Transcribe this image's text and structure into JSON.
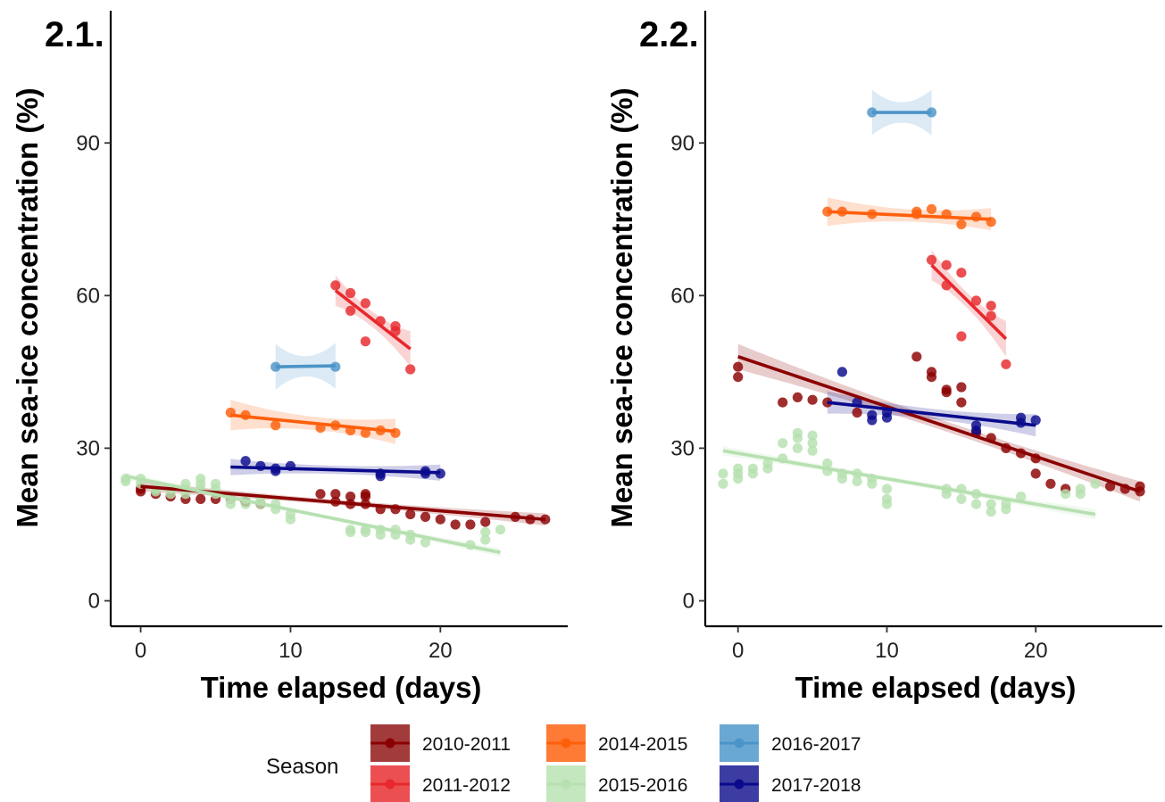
{
  "chart_data": [
    {
      "type": "scatter",
      "panel_label": "2.1.",
      "xlabel": "Time elapsed (days)",
      "ylabel": "Mean sea-ice concentration (%)",
      "xlim": [
        -2,
        28.5
      ],
      "ylim": [
        -5,
        116
      ],
      "xticks": [
        0,
        10,
        20
      ],
      "yticks": [
        0,
        30,
        60,
        90
      ],
      "grid": false,
      "series": [
        {
          "name": "2010-2011",
          "color": "#8b0000",
          "points": [
            [
              0,
              22
            ],
            [
              0,
              21.5
            ],
            [
              1,
              21
            ],
            [
              2,
              20.5
            ],
            [
              3,
              20
            ],
            [
              4,
              20
            ],
            [
              5,
              20
            ],
            [
              6,
              20
            ],
            [
              7,
              19.5
            ],
            [
              8,
              19
            ],
            [
              12,
              21
            ],
            [
              13,
              21
            ],
            [
              13,
              19.5
            ],
            [
              14,
              20.5
            ],
            [
              14,
              19
            ],
            [
              15,
              20.5
            ],
            [
              15,
              21
            ],
            [
              15,
              19
            ],
            [
              16,
              18
            ],
            [
              17,
              18
            ],
            [
              18,
              17
            ],
            [
              19,
              16.5
            ],
            [
              20,
              16
            ],
            [
              21,
              15
            ],
            [
              22,
              15
            ],
            [
              23,
              15.5
            ],
            [
              25,
              16.5
            ],
            [
              26,
              16
            ],
            [
              27,
              16
            ]
          ],
          "fit": {
            "x": [
              0,
              27
            ],
            "y": [
              22.5,
              16
            ],
            "band": [
              1.0,
              0.5,
              1.2
            ]
          }
        },
        {
          "name": "2011-2012",
          "color": "#e8282c",
          "points": [
            [
              13,
              62
            ],
            [
              14,
              60.5
            ],
            [
              14,
              57
            ],
            [
              15,
              58.5
            ],
            [
              15,
              51
            ],
            [
              16,
              55
            ],
            [
              17,
              54
            ],
            [
              17,
              53
            ],
            [
              18,
              45.5
            ]
          ],
          "fit": {
            "x": [
              13,
              18
            ],
            "y": [
              61,
              49.5
            ],
            "band": [
              3.0,
              1.5,
              3.5
            ]
          }
        },
        {
          "name": "2014-2015",
          "color": "#fe5f0b",
          "points": [
            [
              6,
              37
            ],
            [
              7,
              36.5
            ],
            [
              9,
              34.5
            ],
            [
              12,
              34
            ],
            [
              13,
              34.5
            ],
            [
              14,
              33.5
            ],
            [
              15,
              33
            ],
            [
              16,
              33.5
            ],
            [
              17,
              33
            ]
          ],
          "fit": {
            "x": [
              6,
              17
            ],
            "y": [
              36.5,
              33.3
            ],
            "band": [
              3.0,
              1.3,
              2.5
            ]
          }
        },
        {
          "name": "2015-2016",
          "color": "#b6e0b0",
          "points": [
            [
              -1,
              24
            ],
            [
              -1,
              23.5
            ],
            [
              0,
              24
            ],
            [
              0,
              23
            ],
            [
              1,
              22
            ],
            [
              1,
              21.5
            ],
            [
              2,
              22
            ],
            [
              2,
              21
            ],
            [
              3,
              22
            ],
            [
              3,
              23
            ],
            [
              3,
              21
            ],
            [
              4,
              23
            ],
            [
              4,
              24
            ],
            [
              4,
              22
            ],
            [
              5,
              23
            ],
            [
              5,
              22
            ],
            [
              5,
              21
            ],
            [
              6,
              20
            ],
            [
              6,
              19
            ],
            [
              7,
              20
            ],
            [
              7,
              19
            ],
            [
              8,
              20
            ],
            [
              8,
              19
            ],
            [
              9,
              19
            ],
            [
              9,
              18
            ],
            [
              10,
              17
            ],
            [
              10,
              16
            ],
            [
              14,
              14
            ],
            [
              14,
              13.5
            ],
            [
              15,
              14
            ],
            [
              15,
              13.5
            ],
            [
              16,
              14
            ],
            [
              16,
              13
            ],
            [
              17,
              14
            ],
            [
              17,
              13
            ],
            [
              18,
              13
            ],
            [
              18,
              12
            ],
            [
              19,
              11.5
            ],
            [
              22,
              11
            ],
            [
              23,
              12
            ],
            [
              23,
              13.5
            ],
            [
              24,
              14
            ]
          ],
          "fit": {
            "x": [
              -1,
              24
            ],
            "y": [
              24.5,
              9.5
            ],
            "band": [
              0.7,
              0.4,
              0.8
            ]
          }
        },
        {
          "name": "2016-2017",
          "color": "#4c94c8",
          "points": [
            [
              9,
              46
            ],
            [
              13,
              46
            ]
          ],
          "fit": {
            "x": [
              9,
              13
            ],
            "y": [
              46,
              46.2
            ],
            "band": [
              4.5,
              2.0,
              4.5
            ]
          }
        },
        {
          "name": "2017-2018",
          "color": "#0a0a8c",
          "points": [
            [
              7,
              27.5
            ],
            [
              8,
              26.5
            ],
            [
              9,
              26
            ],
            [
              9,
              25.5
            ],
            [
              10,
              26.5
            ],
            [
              16,
              25
            ],
            [
              16,
              24.5
            ],
            [
              19,
              25.5
            ],
            [
              19,
              25
            ],
            [
              20,
              25
            ]
          ],
          "fit": {
            "x": [
              6,
              20
            ],
            "y": [
              26.3,
              25.2
            ],
            "band": [
              1.6,
              0.8,
              1.6
            ]
          }
        }
      ]
    },
    {
      "type": "scatter",
      "panel_label": "2.2.",
      "xlabel": "Time elapsed (days)",
      "ylabel": "Mean sea-ice concentration (%)",
      "xlim": [
        -2.2,
        28.5
      ],
      "ylim": [
        -5,
        116
      ],
      "xticks": [
        0,
        10,
        20
      ],
      "yticks": [
        0,
        30,
        60,
        90
      ],
      "grid": false,
      "series": [
        {
          "name": "2010-2011",
          "color": "#8b0000",
          "points": [
            [
              0,
              46
            ],
            [
              0,
              44
            ],
            [
              3,
              39
            ],
            [
              4,
              40
            ],
            [
              5,
              39.5
            ],
            [
              6,
              39
            ],
            [
              8,
              37
            ],
            [
              12,
              48
            ],
            [
              13,
              45
            ],
            [
              13,
              44
            ],
            [
              14,
              41.5
            ],
            [
              14,
              41
            ],
            [
              15,
              42
            ],
            [
              15,
              39
            ],
            [
              16,
              33
            ],
            [
              17,
              32
            ],
            [
              18,
              30
            ],
            [
              19,
              29
            ],
            [
              20,
              28
            ],
            [
              20,
              25
            ],
            [
              21,
              23
            ],
            [
              22,
              22
            ],
            [
              25,
              22.5
            ],
            [
              26,
              22
            ],
            [
              27,
              22.5
            ],
            [
              27,
              21.5
            ]
          ],
          "fit": {
            "x": [
              0,
              27
            ],
            "y": [
              48,
              21.5
            ],
            "band": [
              2.5,
              1.0,
              2.0
            ]
          }
        },
        {
          "name": "2011-2012",
          "color": "#e8282c",
          "points": [
            [
              13,
              67
            ],
            [
              14,
              66
            ],
            [
              14,
              62
            ],
            [
              15,
              64.5
            ],
            [
              15,
              52
            ],
            [
              16,
              59
            ],
            [
              17,
              58
            ],
            [
              17,
              56
            ],
            [
              18,
              46.5
            ]
          ],
          "fit": {
            "x": [
              13,
              18
            ],
            "y": [
              66,
              51.5
            ],
            "band": [
              3.0,
              1.5,
              3.5
            ]
          }
        },
        {
          "name": "2014-2015",
          "color": "#fe5f0b",
          "points": [
            [
              6,
              76.5
            ],
            [
              7,
              76.5
            ],
            [
              9,
              76
            ],
            [
              12,
              76.5
            ],
            [
              12,
              76
            ],
            [
              13,
              77
            ],
            [
              14,
              76
            ],
            [
              15,
              74
            ],
            [
              16,
              75.5
            ],
            [
              17,
              74.5
            ]
          ],
          "fit": {
            "x": [
              6,
              17
            ],
            "y": [
              76.5,
              75
            ],
            "band": [
              2.8,
              1.2,
              2.2
            ]
          }
        },
        {
          "name": "2015-2016",
          "color": "#b6e0b0",
          "points": [
            [
              -1,
              25
            ],
            [
              -1,
              23
            ],
            [
              0,
              26
            ],
            [
              0,
              25
            ],
            [
              0,
              24
            ],
            [
              1,
              26
            ],
            [
              1,
              25
            ],
            [
              2,
              27
            ],
            [
              2,
              26
            ],
            [
              3,
              31
            ],
            [
              3,
              28
            ],
            [
              4,
              33
            ],
            [
              4,
              32
            ],
            [
              4,
              30
            ],
            [
              5,
              32.5
            ],
            [
              5,
              31
            ],
            [
              5,
              29.5
            ],
            [
              6,
              27
            ],
            [
              6,
              25.5
            ],
            [
              7,
              25
            ],
            [
              7,
              24
            ],
            [
              8,
              25
            ],
            [
              8,
              23.5
            ],
            [
              9,
              24
            ],
            [
              9,
              23
            ],
            [
              10,
              22
            ],
            [
              10,
              20
            ],
            [
              10,
              19
            ],
            [
              14,
              22
            ],
            [
              14,
              21
            ],
            [
              15,
              22
            ],
            [
              15,
              20
            ],
            [
              16,
              21
            ],
            [
              16,
              19
            ],
            [
              17,
              19
            ],
            [
              17,
              17.5
            ],
            [
              18,
              19
            ],
            [
              18,
              18
            ],
            [
              19,
              20.5
            ],
            [
              22,
              21
            ],
            [
              23,
              21
            ],
            [
              23,
              22
            ],
            [
              24,
              23
            ]
          ],
          "fit": {
            "x": [
              -1,
              24
            ],
            "y": [
              29.5,
              17
            ],
            "band": [
              0.9,
              0.5,
              1.0
            ]
          }
        },
        {
          "name": "2016-2017",
          "color": "#4c94c8",
          "points": [
            [
              9,
              96
            ],
            [
              13,
              96
            ]
          ],
          "fit": {
            "x": [
              9,
              13
            ],
            "y": [
              96,
              96
            ],
            "band": [
              4.5,
              2.0,
              4.5
            ]
          }
        },
        {
          "name": "2017-2018",
          "color": "#0a0a8c",
          "points": [
            [
              7,
              45
            ],
            [
              8,
              39
            ],
            [
              9,
              36.5
            ],
            [
              9,
              35.5
            ],
            [
              10,
              37
            ],
            [
              10,
              36
            ],
            [
              16,
              34.5
            ],
            [
              16,
              33.5
            ],
            [
              19,
              36
            ],
            [
              19,
              35
            ],
            [
              20,
              35.5
            ]
          ],
          "fit": {
            "x": [
              6,
              20
            ],
            "y": [
              39,
              34.5
            ],
            "band": [
              2.2,
              1.0,
              2.2
            ]
          }
        }
      ]
    }
  ],
  "legend": {
    "title": "Season",
    "placement": "bottom",
    "items": [
      {
        "label": "2010-2011",
        "color": "#8b0000",
        "fill": "#a23b3b"
      },
      {
        "label": "2011-2012",
        "color": "#e8282c",
        "fill": "#ec4f52"
      },
      {
        "label": "2014-2015",
        "color": "#fe5f0b",
        "fill": "#fe7b35"
      },
      {
        "label": "2015-2016",
        "color": "#b6e0b0",
        "fill": "#c5e7bf"
      },
      {
        "label": "2016-2017",
        "color": "#4c94c8",
        "fill": "#6aa8d4"
      },
      {
        "label": "2017-2018",
        "color": "#0a0a8c",
        "fill": "#3c3ca2"
      }
    ]
  }
}
